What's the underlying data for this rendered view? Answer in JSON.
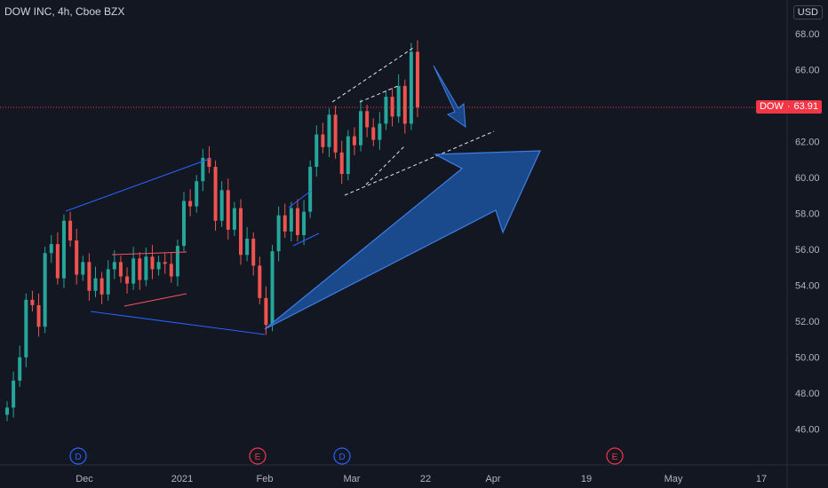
{
  "header": {
    "title": "DOW INC, 4h, Cboe BZX",
    "currency": "USD"
  },
  "price_tag": {
    "symbol": "DOW",
    "separator": "·",
    "value": "63.91"
  },
  "colors": {
    "background": "#131722",
    "up": "#26a69a",
    "down": "#ef5350",
    "price_line": "#f23645",
    "drawing_blue": "#2962ff",
    "arrow_fill": "#1e5bb0"
  },
  "chart_data": {
    "type": "candlestick",
    "title": "DOW INC, 4h, Cboe BZX",
    "ylim": [
      44.5,
      69
    ],
    "yticks": [
      46,
      48,
      50,
      52,
      54,
      56,
      58,
      60,
      62,
      64,
      66,
      68
    ],
    "ytick_labels": [
      "46.00",
      "48.00",
      "50.00",
      "52.00",
      "54.00",
      "56.00",
      "58.00",
      "60.00",
      "62.00",
      "64.00",
      "66.00",
      "68.00"
    ],
    "xtick_labels": [
      "Dec",
      "2021",
      "Feb",
      "Mar",
      "22",
      "Apr",
      "19",
      "May",
      "17"
    ],
    "last_price": 63.91,
    "series": [
      {
        "values": [
          47.2,
          48.7,
          50.0,
          53.2,
          52.9,
          51.7,
          55.8,
          56.3,
          54.4,
          57.6,
          56.5,
          54.6,
          55.3,
          53.7,
          54.4,
          53.5,
          54.9,
          55.3,
          54.5,
          54.1,
          55.5,
          54.3,
          55.6,
          54.9,
          55.3,
          55.2,
          54.5,
          56.2,
          58.7,
          58.4,
          59.8,
          61.1,
          60.6,
          57.6,
          59.3,
          57.1,
          58.3,
          55.7,
          56.6,
          55.1,
          53.3,
          51.8,
          55.9,
          57.9,
          57.0,
          58.3,
          56.8,
          58.1,
          60.6,
          62.4,
          61.7,
          63.5,
          61.4,
          60.2,
          62.3,
          61.8,
          63.7,
          62.8,
          62.1,
          63.0,
          64.5,
          63.4,
          65.1,
          63.0,
          67.0,
          63.91
        ]
      }
    ],
    "badges": [
      {
        "letter": "D",
        "type": "dividend"
      },
      {
        "letter": "E",
        "type": "earnings"
      },
      {
        "letter": "D",
        "type": "dividend"
      },
      {
        "letter": "E",
        "type": "earnings"
      }
    ],
    "grid": false
  }
}
